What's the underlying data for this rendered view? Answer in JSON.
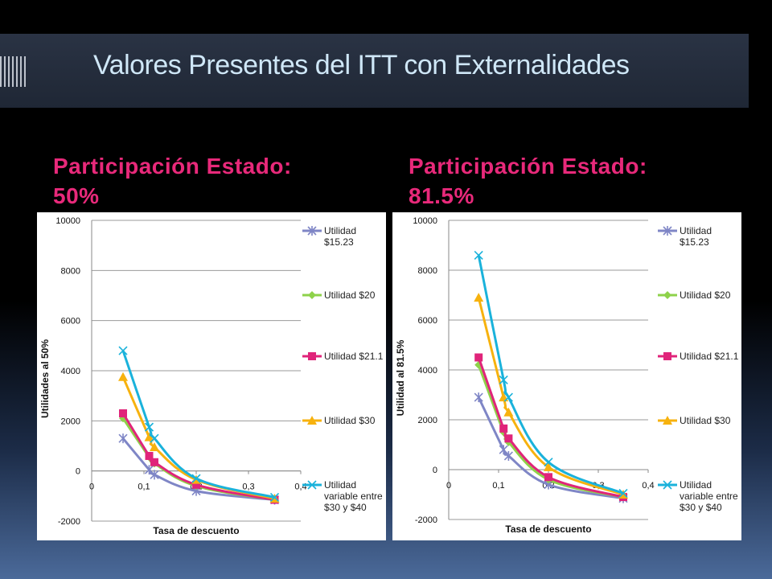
{
  "slide": {
    "title": "Valores Presentes del ITT con Externalidades",
    "subtitle_left": "Participación Estado:\n50%",
    "subtitle_right": "Participación Estado:\n81.5%"
  },
  "colors": {
    "title": "#cfe7f7",
    "subtitle": "#e8297a"
  },
  "chart_data": [
    {
      "type": "line",
      "title": "",
      "xlabel": "Tasa de descuento",
      "ylabel": "Utilidades al 50%",
      "xlim": [
        0,
        0.4
      ],
      "ylim": [
        -2000,
        10000
      ],
      "x_ticks": [
        "0",
        "0,1",
        "0,2",
        "0,3",
        "0,4"
      ],
      "y_ticks": [
        "-2000",
        "0",
        "2000",
        "4000",
        "6000",
        "8000",
        "10000"
      ],
      "grid": "horizontal",
      "legend_position": "right",
      "series": [
        {
          "name": "Utilidad $15.23",
          "color": "#7f86c6",
          "marker": "star",
          "x": [
            0.06,
            0.11,
            0.12,
            0.2,
            0.35
          ],
          "y": [
            1300,
            50,
            -150,
            -800,
            -1150
          ]
        },
        {
          "name": "Utilidad $20",
          "color": "#8ed24a",
          "marker": "diamond",
          "x": [
            0.06,
            0.11,
            0.12,
            0.2,
            0.35
          ],
          "y": [
            2100,
            550,
            300,
            -600,
            -1150
          ]
        },
        {
          "name": "Utilidad $21.1",
          "color": "#e0247a",
          "marker": "square",
          "x": [
            0.06,
            0.11,
            0.12,
            0.2,
            0.35
          ],
          "y": [
            2300,
            600,
            350,
            -550,
            -1150
          ]
        },
        {
          "name": "Utilidad $30",
          "color": "#f7b20e",
          "marker": "triangle",
          "x": [
            0.06,
            0.11,
            0.12,
            0.2,
            0.35
          ],
          "y": [
            3750,
            1350,
            950,
            -350,
            -1100
          ]
        },
        {
          "name": "Utilidad variable entre $30 y $40",
          "color": "#1ab2db",
          "marker": "x",
          "x": [
            0.06,
            0.11,
            0.12,
            0.2,
            0.35
          ],
          "y": [
            4800,
            1750,
            1300,
            -300,
            -1050
          ]
        }
      ]
    },
    {
      "type": "line",
      "title": "",
      "xlabel": "Tasa de descuento",
      "ylabel": "Utilidad al 81.5%",
      "xlim": [
        0,
        0.4
      ],
      "ylim": [
        -2000,
        10000
      ],
      "x_ticks": [
        "0",
        "0,1",
        "0,2",
        "0,3",
        "0,4"
      ],
      "y_ticks": [
        "-2000",
        "0",
        "2000",
        "4000",
        "6000",
        "8000",
        "10000"
      ],
      "grid": "horizontal",
      "legend_position": "right",
      "series": [
        {
          "name": "Utilidad $15.23",
          "color": "#7f86c6",
          "marker": "star",
          "x": [
            0.06,
            0.11,
            0.12,
            0.2,
            0.35
          ],
          "y": [
            2900,
            800,
            550,
            -600,
            -1150
          ]
        },
        {
          "name": "Utilidad $20",
          "color": "#8ed24a",
          "marker": "diamond",
          "x": [
            0.06,
            0.11,
            0.12,
            0.2,
            0.35
          ],
          "y": [
            4200,
            1500,
            1100,
            -400,
            -1100
          ]
        },
        {
          "name": "Utilidad $21.1",
          "color": "#e0247a",
          "marker": "square",
          "x": [
            0.06,
            0.11,
            0.12,
            0.2,
            0.35
          ],
          "y": [
            4500,
            1650,
            1250,
            -300,
            -1100
          ]
        },
        {
          "name": "Utilidad $30",
          "color": "#f7b20e",
          "marker": "triangle",
          "x": [
            0.06,
            0.11,
            0.12,
            0.2,
            0.35
          ],
          "y": [
            6900,
            2900,
            2300,
            100,
            -1000
          ]
        },
        {
          "name": "Utilidad variable entre $30 y $40",
          "color": "#1ab2db",
          "marker": "x",
          "x": [
            0.06,
            0.11,
            0.12,
            0.2,
            0.35
          ],
          "y": [
            8600,
            3600,
            2900,
            300,
            -950
          ]
        }
      ]
    }
  ]
}
